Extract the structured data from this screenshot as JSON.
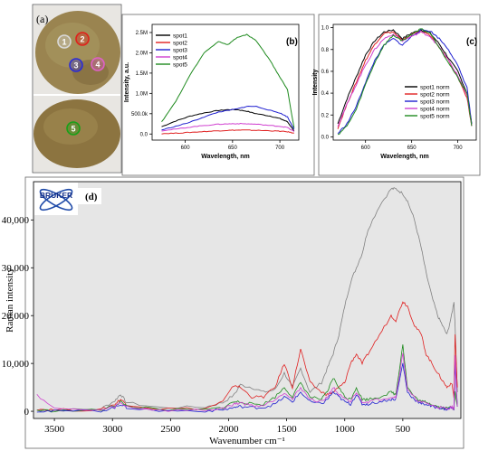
{
  "panels": {
    "a": {
      "label": "(a)",
      "spots": [
        {
          "id": "1",
          "color": "#d9d9d9"
        },
        {
          "id": "2",
          "color": "#e0201b"
        },
        {
          "id": "3",
          "color": "#2b2bd6"
        },
        {
          "id": "4",
          "color": "#e060c8"
        },
        {
          "id": "5",
          "color": "#18a018"
        }
      ]
    }
  },
  "chart_data": [
    {
      "panel": "(b)",
      "type": "line",
      "xlabel": "Wavelength, nm",
      "ylabel": "Intensity, a.u.",
      "xlim": [
        565,
        720
      ],
      "ylim": [
        -150000,
        2700000
      ],
      "xticks": [
        600,
        650,
        700
      ],
      "yticks": [
        0,
        500000,
        1000000,
        1500000,
        2000000,
        2500000
      ],
      "ytick_labels": [
        "0.0",
        "500.0k",
        "1.0M",
        "1.5M",
        "2.0M",
        "2.5M"
      ],
      "legend": "top-left",
      "x": [
        575,
        590,
        605,
        620,
        635,
        645,
        655,
        665,
        675,
        690,
        700,
        708,
        715
      ],
      "series": [
        {
          "name": "spot1",
          "color": "#000000",
          "values": [
            180000,
            320000,
            440000,
            520000,
            580000,
            600000,
            600000,
            560000,
            500000,
            440000,
            380000,
            300000,
            80000
          ]
        },
        {
          "name": "spot2",
          "color": "#e02020",
          "values": [
            10000,
            20000,
            40000,
            60000,
            80000,
            90000,
            95000,
            95000,
            90000,
            80000,
            70000,
            55000,
            20000
          ]
        },
        {
          "name": "spot3",
          "color": "#1f1fd0",
          "values": [
            100000,
            190000,
            290000,
            420000,
            540000,
            580000,
            620000,
            680000,
            680000,
            580000,
            520000,
            420000,
            120000
          ]
        },
        {
          "name": "spot4",
          "color": "#d040d0",
          "values": [
            80000,
            120000,
            170000,
            210000,
            240000,
            250000,
            255000,
            250000,
            240000,
            210000,
            190000,
            160000,
            60000
          ]
        },
        {
          "name": "spot5",
          "color": "#1e8a1e",
          "values": [
            300000,
            800000,
            1450000,
            2000000,
            2280000,
            2200000,
            2380000,
            2450000,
            2300000,
            1800000,
            1400000,
            1100000,
            150000
          ]
        }
      ]
    },
    {
      "panel": "(c)",
      "type": "line",
      "xlabel": "Wavelength, nm",
      "ylabel": "Intensity",
      "xlim": [
        565,
        720
      ],
      "ylim": [
        -0.03,
        1.03
      ],
      "xticks": [
        600,
        650,
        700
      ],
      "yticks": [
        0.0,
        0.2,
        0.4,
        0.6,
        0.8,
        1.0
      ],
      "ytick_labels": [
        "0.0",
        "0.2",
        "0.4",
        "0.6",
        "0.8",
        "1.0"
      ],
      "legend": "bottom-right",
      "x": [
        570,
        580,
        590,
        600,
        610,
        620,
        630,
        640,
        650,
        660,
        670,
        680,
        690,
        700,
        710,
        715
      ],
      "series": [
        {
          "name": "spot1 norm",
          "color": "#000000",
          "values": [
            0.12,
            0.35,
            0.55,
            0.75,
            0.88,
            0.96,
            0.98,
            0.9,
            0.95,
            0.98,
            0.95,
            0.85,
            0.72,
            0.6,
            0.4,
            0.12
          ]
        },
        {
          "name": "spot2 norm",
          "color": "#e02020",
          "values": [
            0.08,
            0.3,
            0.5,
            0.7,
            0.85,
            0.95,
            0.96,
            0.88,
            0.94,
            0.97,
            0.93,
            0.82,
            0.7,
            0.55,
            0.35,
            0.1
          ]
        },
        {
          "name": "spot3 norm",
          "color": "#1f1fd0",
          "values": [
            0.03,
            0.12,
            0.28,
            0.5,
            0.7,
            0.84,
            0.9,
            0.84,
            0.92,
            0.98,
            0.97,
            0.9,
            0.8,
            0.65,
            0.45,
            0.12
          ]
        },
        {
          "name": "spot4 norm",
          "color": "#d040d0",
          "values": [
            0.1,
            0.3,
            0.48,
            0.66,
            0.8,
            0.9,
            0.94,
            0.88,
            0.92,
            0.96,
            0.92,
            0.82,
            0.7,
            0.56,
            0.38,
            0.1
          ]
        },
        {
          "name": "spot5 norm",
          "color": "#1e8a1e",
          "values": [
            0.02,
            0.1,
            0.25,
            0.48,
            0.68,
            0.84,
            0.93,
            0.88,
            0.94,
            0.99,
            0.95,
            0.82,
            0.68,
            0.54,
            0.4,
            0.1
          ]
        }
      ]
    },
    {
      "panel": "(d)",
      "type": "line",
      "logo": "BRUKER",
      "xlabel": "Wavenumber cm⁻¹",
      "ylabel": "Raman intensity",
      "xlim": [
        3680,
        0
      ],
      "ylim": [
        -1500,
        48000
      ],
      "xticks": [
        3500,
        3000,
        2500,
        2000,
        1500,
        1000,
        500
      ],
      "xtick_labels": [
        "3500",
        "3000",
        "2500",
        "2000",
        "1500",
        "1000",
        "500"
      ],
      "yticks": [
        0,
        10000,
        20000,
        30000,
        40000
      ],
      "ytick_labels": [
        "0",
        "10,000",
        "20,000",
        "30,000",
        "40,000"
      ],
      "grid": false,
      "x": [
        3650,
        3500,
        3100,
        2980,
        2930,
        2880,
        2600,
        2200,
        2050,
        1950,
        1900,
        1800,
        1700,
        1600,
        1520,
        1450,
        1380,
        1300,
        1200,
        1150,
        1100,
        1050,
        1000,
        950,
        900,
        850,
        800,
        700,
        600,
        560,
        500,
        460,
        400,
        340,
        300,
        250,
        200,
        160,
        120,
        80,
        60,
        50,
        30
      ],
      "series": [
        {
          "name": "",
          "color": "#808080",
          "values": [
            300,
            200,
            500,
            2200,
            3600,
            1800,
            800,
            900,
            1800,
            3500,
            5500,
            5000,
            4000,
            4500,
            8000,
            5000,
            9000,
            4000,
            6000,
            9000,
            12000,
            16000,
            22000,
            27000,
            30000,
            33000,
            38000,
            43000,
            46500,
            46500,
            45500,
            44000,
            40000,
            34000,
            29000,
            24000,
            20000,
            18000,
            16000,
            20000,
            23000,
            18000,
            4000
          ]
        },
        {
          "name": "",
          "color": "#e02020",
          "values": [
            500,
            300,
            300,
            1500,
            2500,
            1500,
            500,
            600,
            2000,
            5500,
            5000,
            3000,
            3000,
            5000,
            10000,
            5000,
            13000,
            6000,
            4000,
            3500,
            4000,
            5000,
            6000,
            10000,
            12000,
            10000,
            12000,
            16000,
            20000,
            19000,
            23000,
            22000,
            18000,
            16000,
            12000,
            10000,
            8000,
            6500,
            5000,
            6000,
            3000,
            16000,
            5000
          ]
        },
        {
          "name": "",
          "color": "#1e8a1e",
          "values": [
            200,
            100,
            200,
            1200,
            2000,
            1200,
            300,
            300,
            800,
            2000,
            2000,
            1500,
            1500,
            3000,
            5000,
            3000,
            6000,
            3000,
            2500,
            4000,
            7000,
            5000,
            3000,
            2500,
            5000,
            2500,
            2500,
            3000,
            4000,
            3500,
            14000,
            5000,
            3000,
            2000,
            2000,
            1500,
            1000,
            800,
            600,
            1000,
            500,
            4000,
            1000
          ]
        },
        {
          "name": "",
          "color": "#1f1fd0",
          "values": [
            100,
            0,
            100,
            800,
            1500,
            800,
            100,
            100,
            300,
            800,
            1000,
            800,
            800,
            1500,
            3000,
            2000,
            4000,
            2000,
            1500,
            2500,
            4000,
            3000,
            2000,
            1500,
            3500,
            1500,
            1500,
            2000,
            2500,
            2500,
            10000,
            4000,
            2500,
            1500,
            1500,
            1000,
            800,
            600,
            400,
            800,
            400,
            10000,
            1000
          ]
        },
        {
          "name": "",
          "color": "#d040d0",
          "values": [
            3500,
            500,
            200,
            1000,
            1800,
            1000,
            200,
            200,
            600,
            1500,
            1800,
            1200,
            1200,
            2500,
            4000,
            2500,
            5000,
            2500,
            2000,
            3000,
            5000,
            3500,
            2500,
            2000,
            4000,
            2000,
            2000,
            2500,
            3000,
            3000,
            12000,
            4500,
            2800,
            1800,
            1800,
            1200,
            900,
            700,
            500,
            900,
            500,
            12000,
            1000
          ]
        }
      ]
    }
  ]
}
